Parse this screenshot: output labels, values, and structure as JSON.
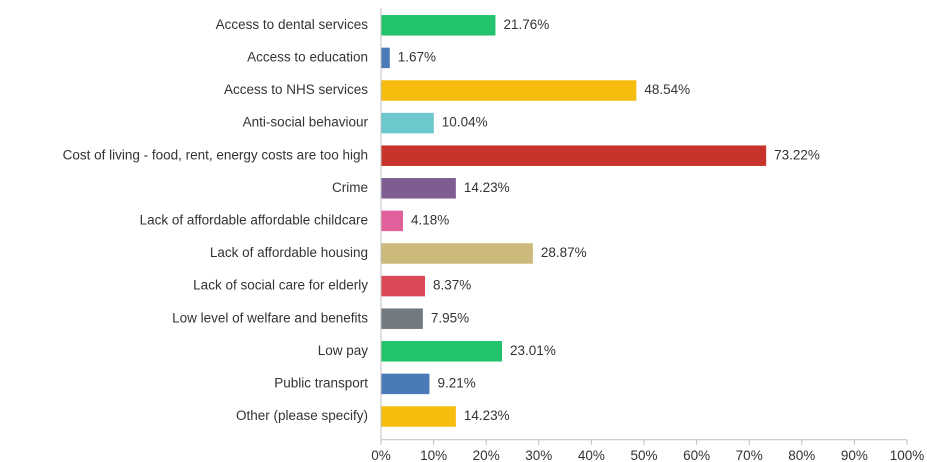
{
  "chart_data": {
    "type": "bar",
    "orientation": "horizontal",
    "categories": [
      "Access to dental services",
      "Access to education",
      "Access to NHS services",
      "Anti-social behaviour",
      "Cost of living - food, rent, energy costs are too high",
      "Crime",
      "Lack of affordable affordable childcare",
      "Lack of affordable housing",
      "Lack of social care for elderly",
      "Low level of welfare and benefits",
      "Low pay",
      "Public transport",
      "Other (please specify)"
    ],
    "values": [
      21.76,
      1.67,
      48.54,
      10.04,
      73.22,
      14.23,
      4.18,
      28.87,
      8.37,
      7.95,
      23.01,
      9.21,
      14.23
    ],
    "value_labels": [
      "21.76%",
      "1.67%",
      "48.54%",
      "10.04%",
      "73.22%",
      "14.23%",
      "4.18%",
      "28.87%",
      "8.37%",
      "7.95%",
      "23.01%",
      "9.21%",
      "14.23%"
    ],
    "colors": [
      "#21c46b",
      "#4a7ab8",
      "#f6bd0f",
      "#6cc8cc",
      "#c8332b",
      "#7e5d93",
      "#e0609c",
      "#cbba7c",
      "#dc4a57",
      "#707a80",
      "#21c46b",
      "#4a7ab8",
      "#f6bd0f"
    ],
    "xlim": [
      0,
      100
    ],
    "xticks": [
      0,
      10,
      20,
      30,
      40,
      50,
      60,
      70,
      80,
      90,
      100
    ],
    "xtick_labels": [
      "0%",
      "10%",
      "20%",
      "30%",
      "40%",
      "50%",
      "60%",
      "70%",
      "80%",
      "90%",
      "100%"
    ],
    "title": "",
    "xlabel": "",
    "ylabel": "",
    "grid": false,
    "legend": "none"
  }
}
